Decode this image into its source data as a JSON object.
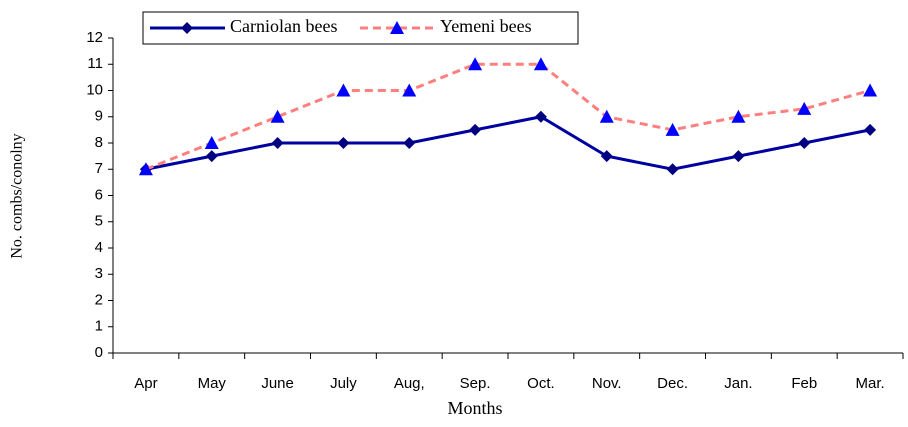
{
  "chart_data": {
    "type": "line",
    "x_label": "Months",
    "y_label": "No. combs/conolny",
    "categories": [
      "Apr",
      "May",
      "June",
      "July",
      "Aug,",
      "Sep.",
      "Oct.",
      "Nov.",
      "Dec.",
      "Jan.",
      "Feb",
      "Mar."
    ],
    "series": [
      {
        "name": "Carniolan bees",
        "color": "#0000a0",
        "marker_color": "#000080",
        "marker": "diamond",
        "dashed": false,
        "values": [
          7,
          7.5,
          8,
          8,
          8,
          8.5,
          9,
          7.5,
          7,
          7.5,
          8,
          8.5
        ]
      },
      {
        "name": "Yemeni bees",
        "color": "#ff7f7f",
        "marker_color": "#0000ff",
        "marker": "triangle",
        "dashed": true,
        "values": [
          7,
          8,
          9,
          10,
          10,
          11,
          11,
          9,
          8.5,
          9,
          9.3,
          10
        ]
      }
    ],
    "ylim": [
      0,
      12
    ],
    "yticks": [
      0,
      1,
      2,
      3,
      4,
      5,
      6,
      7,
      8,
      9,
      10,
      11,
      12
    ],
    "grid": false,
    "legend": "top"
  }
}
